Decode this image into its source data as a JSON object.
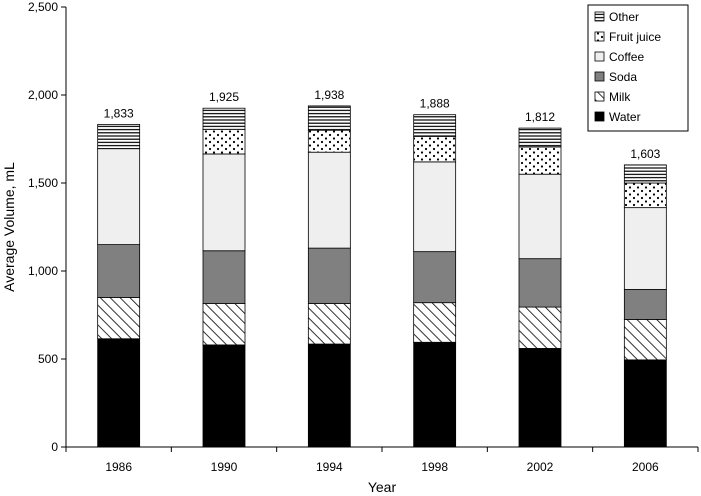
{
  "chart_data": {
    "type": "bar",
    "stacked": true,
    "categories": [
      "1986",
      "1990",
      "1994",
      "1998",
      "2002",
      "2006"
    ],
    "series": [
      {
        "name": "Water",
        "pattern": "solid-black",
        "values": [
          615,
          580,
          585,
          595,
          560,
          495
        ]
      },
      {
        "name": "Milk",
        "pattern": "diagonal-hatch",
        "values": [
          235,
          235,
          230,
          225,
          235,
          230
        ]
      },
      {
        "name": "Soda",
        "pattern": "solid-gray",
        "values": [
          300,
          300,
          315,
          290,
          275,
          170
        ]
      },
      {
        "name": "Coffee",
        "pattern": "light-gray",
        "values": [
          545,
          550,
          545,
          510,
          480,
          465
        ]
      },
      {
        "name": "Fruit juice",
        "pattern": "dots",
        "values": [
          0,
          140,
          125,
          145,
          155,
          140
        ]
      },
      {
        "name": "Other",
        "pattern": "horizontal-lines",
        "values": [
          138,
          120,
          138,
          123,
          107,
          103
        ]
      }
    ],
    "totals": [
      "1,833",
      "1,925",
      "1,938",
      "1,888",
      "1,812",
      "1,603"
    ],
    "xlabel": "Year",
    "ylabel": "Average Volume, mL",
    "ylim": [
      0,
      2500
    ],
    "yticks": [
      0,
      500,
      1000,
      1500,
      2000,
      2500
    ],
    "ytick_labels": [
      "0",
      "500",
      "1,000",
      "1,500",
      "2,000",
      "2,500"
    ],
    "legend_position": "top-right",
    "grid": false,
    "colors": {
      "water": "#000000",
      "soda": "#808080",
      "coffee": "#efefef",
      "milk_hatch": "#000000",
      "other_lines": "#000000"
    }
  }
}
